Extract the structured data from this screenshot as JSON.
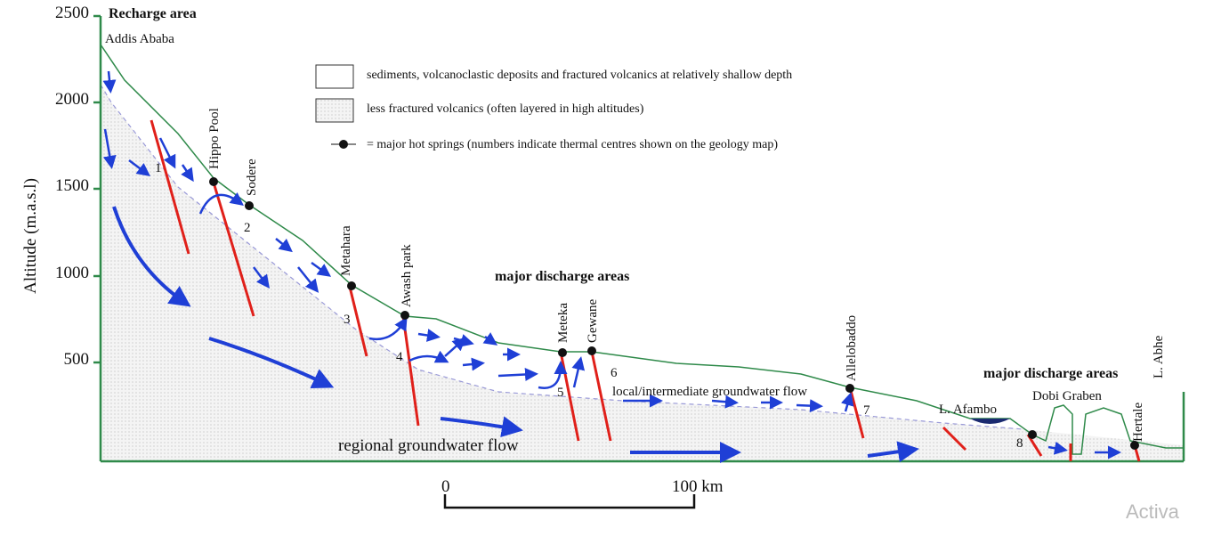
{
  "header": {
    "title": "Recharge area",
    "origin": "Addis Ababa"
  },
  "y_axis": {
    "label": "Altitude (m.a.s.l)",
    "ticks": [
      "2500",
      "2000",
      "1500",
      "1000",
      "500"
    ]
  },
  "legend": [
    "sediments, volcanoclastic deposits and fractured volcanics at relatively shallow depth",
    "less fractured volcanics (often layered in high altitudes)",
    "= major hot springs (numbers indicate thermal centres shown on the geology map)"
  ],
  "places": [
    "Hippo Pool",
    "Sodere",
    "Metahara",
    "Awash park",
    "Meteka",
    "Gewane",
    "Allelobaddo",
    "L. Afambo",
    "Dobi Graben",
    "Hertale",
    "L. Abhe"
  ],
  "centres": [
    "1",
    "2",
    "3",
    "4",
    "5",
    "6",
    "7",
    "8"
  ],
  "annotations": [
    "major discharge areas",
    "major discharge areas",
    "local/intermediate groundwater flow",
    "regional groundwater flow"
  ],
  "scale": [
    "0",
    "100 km"
  ],
  "watermark": "Activa"
}
